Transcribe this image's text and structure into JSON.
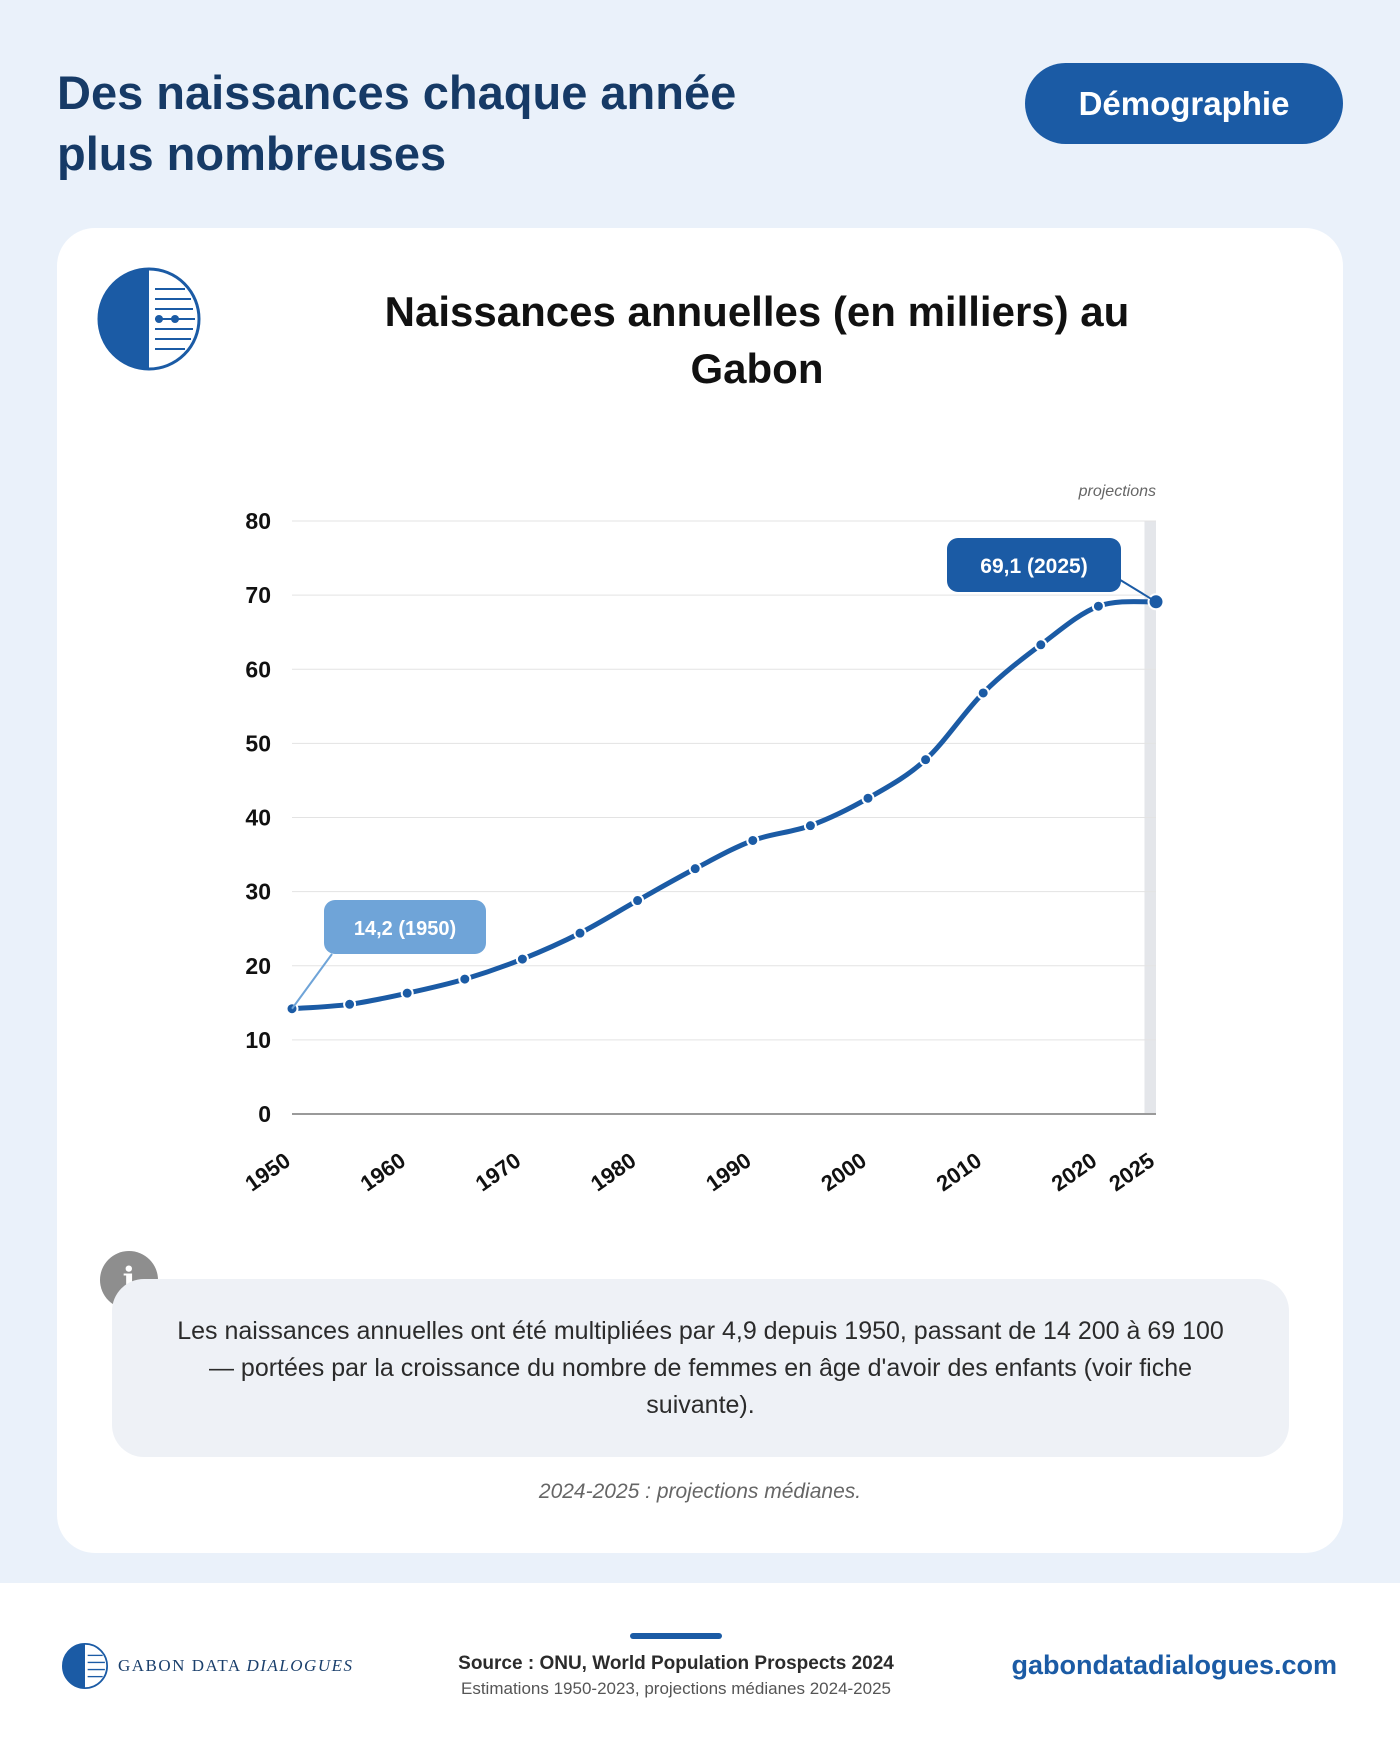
{
  "header": {
    "title": "Des naissances chaque année plus nombreuses",
    "badge": "Démographie"
  },
  "chart_data": {
    "type": "line",
    "title": "Naissances annuelles (en milliers) au Gabon",
    "xlabel": "",
    "ylabel": "",
    "ylim": [
      0,
      80
    ],
    "xlim": [
      1950,
      2025
    ],
    "yticks": [
      0,
      10,
      20,
      30,
      40,
      50,
      60,
      70,
      80
    ],
    "xticks": [
      1950,
      1960,
      1970,
      1980,
      1990,
      2000,
      2010,
      2020,
      2025
    ],
    "grid": true,
    "projection_label": "projections",
    "projection_start": 2024,
    "series": [
      {
        "x": [
          1950,
          1955,
          1960,
          1965,
          1970,
          1975,
          1980,
          1985,
          1990,
          1995,
          2000,
          2005,
          2010,
          2015,
          2020,
          2025
        ],
        "y": [
          14.2,
          14.8,
          16.3,
          18.2,
          20.9,
          24.4,
          28.8,
          33.1,
          36.9,
          38.9,
          42.6,
          47.8,
          56.8,
          63.3,
          68.5,
          69.1
        ]
      }
    ],
    "annotations": [
      {
        "text": "14,2 (1950)",
        "x": 1950,
        "y": 14.2
      },
      {
        "text": "69,1 (2025)",
        "x": 2025,
        "y": 69.1
      }
    ],
    "colors": {
      "line": "#1b5ba5",
      "start_label": "#6fa4d8",
      "end_label": "#1b5ba5",
      "projection_band": "#e4e6ea"
    }
  },
  "info": {
    "icon": "info-icon",
    "text": "Les naissances annuelles ont été multipliées par 4,9 depuis 1950, passant de 14 200 à 69 100 — portées par la croissance du nombre de femmes en âge d'avoir des enfants (voir fiche suivante).",
    "glyph": "i"
  },
  "note": "2024-2025 : projections médianes.",
  "footer": {
    "brand_main": "GABON DATA ",
    "brand_italic": "DIALOGUES",
    "source": "Source : ONU, World Population Prospects 2024",
    "subsource": "Estimations 1950-2023, projections médianes 2024-2025",
    "url": "gabondatadialogues.com"
  }
}
